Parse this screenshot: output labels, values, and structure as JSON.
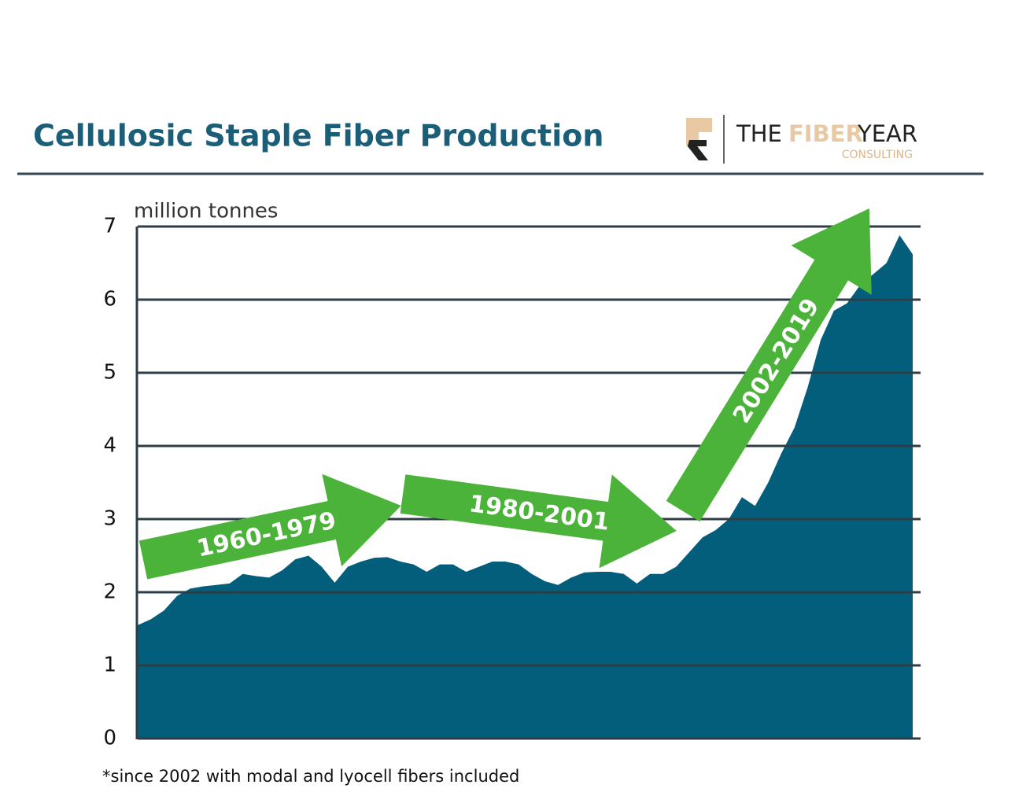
{
  "chart_data": {
    "type": "area",
    "title": "Cellulosic Staple Fiber Production",
    "y_label": "million tonnes",
    "footnote": "*since 2002 with modal and lyocell fibers included",
    "logo": {
      "the": "THE",
      "fiber": "FIBER",
      "year": "YEAR",
      "consulting": "CONSULTING"
    },
    "annotations": [
      "1960-1979",
      "1980-2001",
      "2002-2019"
    ],
    "color": "#035e7b",
    "values": [
      1.55,
      1.63,
      1.75,
      1.95,
      2.05,
      2.08,
      2.1,
      2.12,
      2.25,
      2.22,
      2.2,
      2.3,
      2.45,
      2.5,
      2.35,
      2.13,
      2.35,
      2.42,
      2.47,
      2.48,
      2.42,
      2.38,
      2.28,
      2.38,
      2.38,
      2.28,
      2.35,
      2.42,
      2.42,
      2.38,
      2.25,
      2.15,
      2.1,
      2.2,
      2.27,
      2.28,
      2.28,
      2.25,
      2.12,
      2.25,
      2.25,
      2.35,
      2.55,
      2.75,
      2.85,
      3.0,
      3.3,
      3.18,
      3.5,
      3.9,
      4.25,
      4.8,
      5.45,
      5.85,
      5.95,
      6.2,
      6.35,
      6.5,
      6.88,
      6.62
    ],
    "ylim": [
      0,
      7
    ],
    "yticks": [
      0,
      1,
      2,
      3,
      4,
      5,
      6,
      7
    ],
    "grid": true
  }
}
